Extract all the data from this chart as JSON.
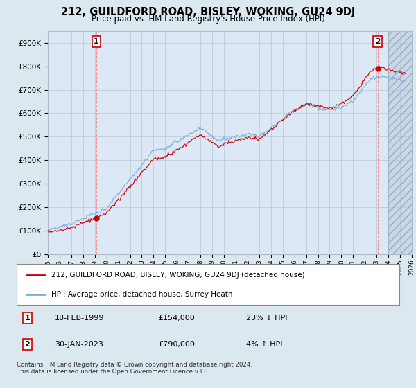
{
  "title": "212, GUILDFORD ROAD, BISLEY, WOKING, GU24 9DJ",
  "subtitle": "Price paid vs. HM Land Registry's House Price Index (HPI)",
  "legend_line1": "212, GUILDFORD ROAD, BISLEY, WOKING, GU24 9DJ (detached house)",
  "legend_line2": "HPI: Average price, detached house, Surrey Heath",
  "annotation1_label": "1",
  "annotation1_date": "18-FEB-1999",
  "annotation1_price": "£154,000",
  "annotation1_hpi": "23% ↓ HPI",
  "annotation2_label": "2",
  "annotation2_date": "30-JAN-2023",
  "annotation2_price": "£790,000",
  "annotation2_hpi": "4% ↑ HPI",
  "footnote": "Contains HM Land Registry data © Crown copyright and database right 2024.\nThis data is licensed under the Open Government Licence v3.0.",
  "sale1_year": 1999.12,
  "sale1_price": 154000,
  "sale2_year": 2023.08,
  "sale2_price": 790000,
  "hpi_color": "#7aacdb",
  "sale_color": "#cc0000",
  "background_color": "#dce8f0",
  "plot_bg_color": "#dce8f5",
  "ylim": [
    0,
    950000
  ],
  "xlim_start": 1995.0,
  "xlim_end": 2026.0,
  "yticks": [
    0,
    100000,
    200000,
    300000,
    400000,
    500000,
    600000,
    700000,
    800000,
    900000
  ],
  "ytick_labels": [
    "£0",
    "£100K",
    "£200K",
    "£300K",
    "£400K",
    "£500K",
    "£600K",
    "£700K",
    "£800K",
    "£900K"
  ],
  "xticks": [
    1995,
    1996,
    1997,
    1998,
    1999,
    2000,
    2001,
    2002,
    2003,
    2004,
    2005,
    2006,
    2007,
    2008,
    2009,
    2010,
    2011,
    2012,
    2013,
    2014,
    2015,
    2016,
    2017,
    2018,
    2019,
    2020,
    2021,
    2022,
    2023,
    2024,
    2025,
    2026
  ]
}
